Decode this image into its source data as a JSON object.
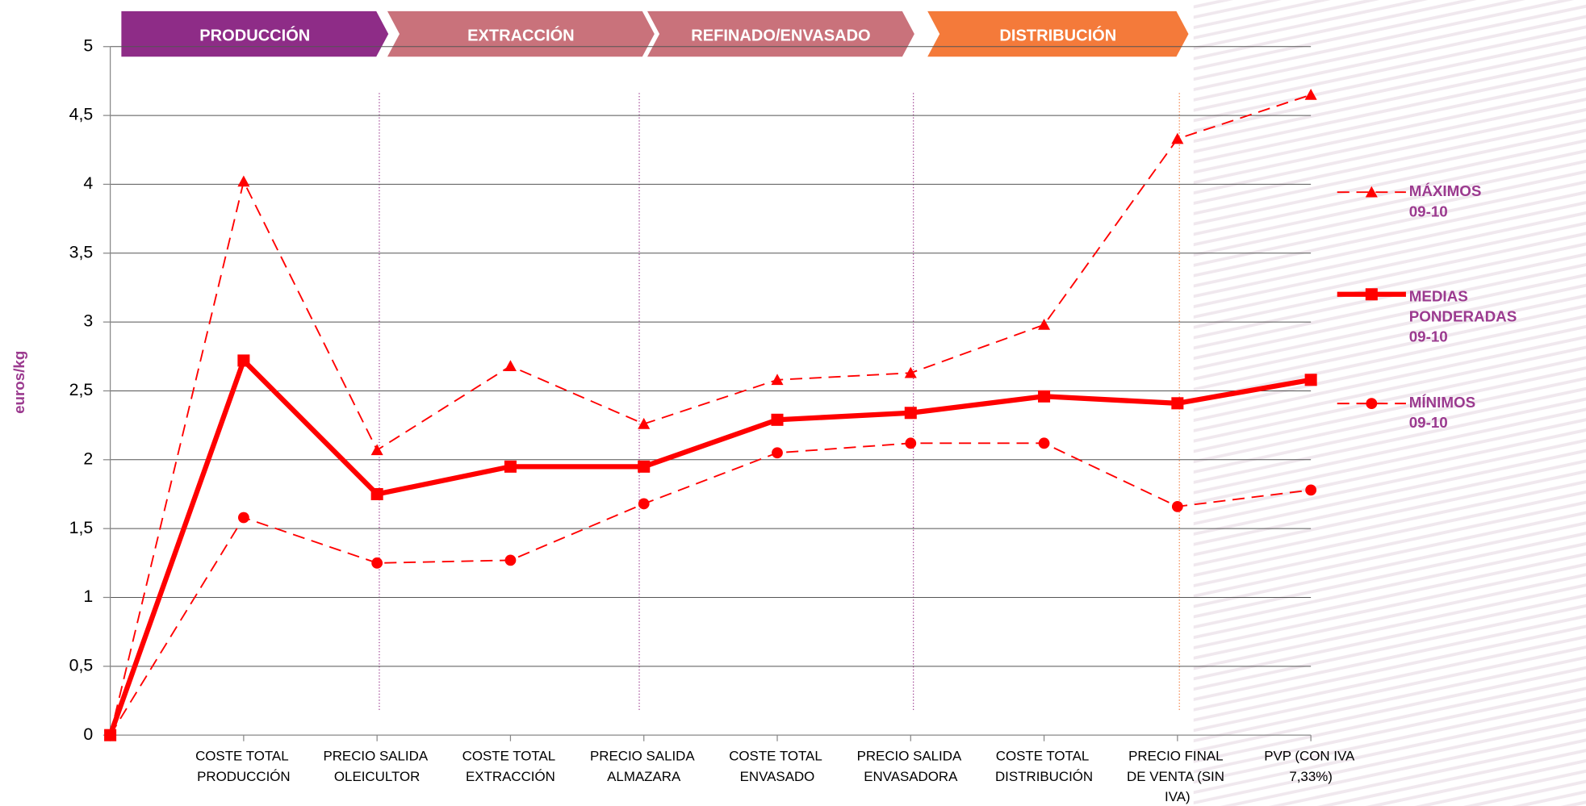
{
  "chart_data": {
    "type": "line",
    "y_label": "euros/kg",
    "stages": [
      {
        "label": "PRODUCCIÓN",
        "color": "#8e2c87"
      },
      {
        "label": "EXTRACCIÓN",
        "color": "#c9727b"
      },
      {
        "label": "REFINADO/ENVASADO",
        "color": "#c9727b"
      },
      {
        "label": "DISTRIBUCIÓN",
        "color": "#f47a3a"
      }
    ],
    "categories": [
      null,
      "COSTE TOTAL PRODUCCIÓN",
      "PRECIO SALIDA OLEICULTOR",
      "COSTE TOTAL EXTRACCIÓN",
      "PRECIO SALIDA ALMAZARA",
      "COSTE TOTAL ENVASADO",
      "PRECIO SALIDA ENVASADORA",
      "COSTE TOTAL DISTRIBUCIÓN",
      "PRECIO FINAL DE VENTA (SIN IVA)",
      "PVP (CON IVA 7,33%)"
    ],
    "series": [
      {
        "name": "MÁXIMOS 09-10",
        "color": "#ff0000",
        "marker": "triangle",
        "dash": true,
        "values": [
          0,
          4.02,
          2.07,
          2.68,
          2.26,
          2.58,
          2.63,
          2.98,
          4.33,
          4.65
        ]
      },
      {
        "name": "MEDIAS PONDERADAS 09-10",
        "color": "#ff0000",
        "marker": "square",
        "dash": false,
        "values": [
          0,
          2.72,
          1.75,
          1.95,
          1.95,
          2.29,
          2.34,
          2.46,
          2.41,
          2.58
        ]
      },
      {
        "name": "MÍNIMOS 09-10",
        "color": "#ff0000",
        "marker": "circle",
        "dash": true,
        "values": [
          0,
          1.58,
          1.25,
          1.27,
          1.68,
          2.05,
          2.12,
          2.12,
          1.66,
          1.78
        ]
      }
    ],
    "ylim": [
      0,
      5
    ],
    "yticks": [
      0,
      {
        "value": 0.5,
        "label": "0,5"
      },
      1,
      {
        "value": 1.5,
        "label": "1,5"
      },
      2,
      {
        "value": 2.5,
        "label": "2,5"
      },
      3,
      {
        "value": 3.5,
        "label": "3,5"
      },
      4,
      {
        "value": 4.5,
        "label": "4,5"
      },
      5
    ],
    "grid": true
  }
}
